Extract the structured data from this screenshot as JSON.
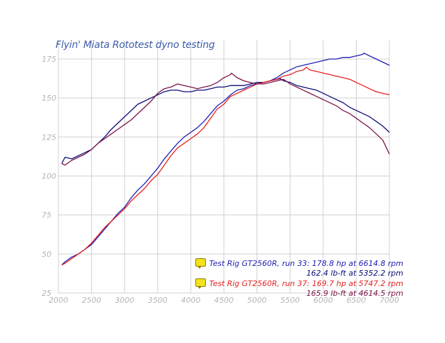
{
  "title": "Flyin' Miata Rototest dyno testing",
  "chart_data": {
    "type": "line",
    "title": "Flyin' Miata Rototest dyno testing",
    "xlabel": "",
    "ylabel": "",
    "xlim": [
      2000,
      7000
    ],
    "ylim": [
      25,
      187
    ],
    "x_ticks": [
      "2000",
      "2500",
      "3000",
      "3500",
      "4000",
      "4500",
      "5000",
      "5500",
      "6000",
      "6500",
      "7000"
    ],
    "y_ticks": [
      "25",
      "50",
      "75",
      "100",
      "125",
      "150",
      "175"
    ],
    "grid": true,
    "series": [
      {
        "name": "Test Rig GT2560R, run 33 hp",
        "color": "#1c1cb4",
        "x": [
          2050,
          2100,
          2200,
          2300,
          2400,
          2500,
          2600,
          2700,
          2800,
          2900,
          3000,
          3100,
          3200,
          3300,
          3400,
          3500,
          3600,
          3700,
          3800,
          3900,
          4000,
          4100,
          4200,
          4300,
          4400,
          4500,
          4600,
          4700,
          4800,
          4900,
          5000,
          5100,
          5200,
          5300,
          5400,
          5500,
          5600,
          5700,
          5800,
          5900,
          6000,
          6100,
          6200,
          6300,
          6400,
          6500,
          6600,
          6615,
          6700,
          6800,
          6900,
          7000
        ],
        "y": [
          43,
          45,
          48,
          50,
          53,
          56,
          61,
          66,
          71,
          76,
          80,
          86,
          91,
          95,
          100,
          105,
          111,
          116,
          121,
          125,
          128,
          131,
          135,
          140,
          145,
          148,
          152,
          155,
          156,
          158,
          159,
          160,
          161,
          163,
          166,
          168,
          170,
          171,
          172,
          173,
          174,
          175,
          175,
          176,
          176,
          177,
          178,
          178.8,
          177,
          175,
          173,
          171
        ]
      },
      {
        "name": "Test Rig GT2560R, run 33 lb-ft",
        "color": "#0a0a78",
        "x": [
          2050,
          2100,
          2200,
          2300,
          2400,
          2500,
          2600,
          2700,
          2800,
          2900,
          3000,
          3100,
          3200,
          3300,
          3400,
          3500,
          3600,
          3700,
          3800,
          3900,
          4000,
          4100,
          4200,
          4300,
          4400,
          4500,
          4600,
          4700,
          4800,
          4900,
          5000,
          5100,
          5200,
          5300,
          5352,
          5400,
          5500,
          5600,
          5700,
          5800,
          5900,
          6000,
          6100,
          6200,
          6300,
          6400,
          6500,
          6600,
          6700,
          6800,
          6900,
          7000
        ],
        "y": [
          108,
          112,
          111,
          113,
          115,
          117,
          121,
          125,
          130,
          134,
          138,
          142,
          146,
          148,
          150,
          152,
          154,
          155,
          155,
          154,
          154,
          155,
          155,
          156,
          157,
          157,
          158,
          158,
          158,
          159,
          160,
          160,
          161,
          162,
          162.4,
          161,
          160,
          158,
          157,
          156,
          155,
          153,
          151,
          149,
          147,
          144,
          142,
          140,
          138,
          135,
          132,
          128
        ]
      },
      {
        "name": "Test Rig GT2560R, run 37 hp",
        "color": "#e41e1e",
        "x": [
          2050,
          2100,
          2200,
          2300,
          2400,
          2500,
          2600,
          2700,
          2800,
          2900,
          3000,
          3100,
          3200,
          3300,
          3400,
          3500,
          3600,
          3700,
          3800,
          3900,
          4000,
          4100,
          4200,
          4300,
          4400,
          4500,
          4600,
          4700,
          4800,
          4900,
          5000,
          5100,
          5200,
          5300,
          5400,
          5500,
          5600,
          5700,
          5747,
          5800,
          5900,
          6000,
          6100,
          6200,
          6300,
          6400,
          6500,
          6600,
          6700,
          6800,
          6900,
          7000
        ],
        "y": [
          43,
          44,
          47,
          50,
          53,
          57,
          62,
          67,
          71,
          75,
          79,
          84,
          88,
          92,
          97,
          101,
          107,
          113,
          118,
          121,
          124,
          127,
          131,
          137,
          143,
          146,
          151,
          153,
          155,
          157,
          159,
          160,
          161,
          162,
          164,
          165,
          167,
          168,
          169.7,
          168,
          167,
          166,
          165,
          164,
          163,
          162,
          160,
          158,
          156,
          154,
          153,
          152
        ]
      },
      {
        "name": "Test Rig GT2560R, run 37 lb-ft",
        "color": "#7a1048",
        "x": [
          2050,
          2100,
          2200,
          2300,
          2400,
          2500,
          2600,
          2700,
          2800,
          2900,
          3000,
          3100,
          3200,
          3300,
          3400,
          3500,
          3600,
          3700,
          3800,
          3900,
          4000,
          4100,
          4200,
          4300,
          4400,
          4500,
          4600,
          4615,
          4700,
          4800,
          4900,
          5000,
          5100,
          5200,
          5300,
          5400,
          5500,
          5600,
          5700,
          5800,
          5900,
          6000,
          6100,
          6200,
          6300,
          6400,
          6500,
          6600,
          6700,
          6800,
          6900,
          7000
        ],
        "y": [
          108,
          107,
          110,
          112,
          114,
          117,
          121,
          124,
          127,
          130,
          133,
          136,
          140,
          144,
          148,
          153,
          156,
          157,
          159,
          158,
          157,
          156,
          157,
          158,
          160,
          163,
          165,
          165.9,
          163,
          161,
          160,
          159,
          159,
          160,
          161,
          162,
          159,
          157,
          155,
          153,
          151,
          149,
          147,
          145,
          142,
          140,
          137,
          134,
          131,
          127,
          123,
          114
        ]
      }
    ],
    "annotations": {
      "run33_label": "Test Rig GT2560R, run 33: 178.8 hp at 6614.8 rpm",
      "run33_sub": "162.4 lb-ft at 5352.2 rpm",
      "run37_label": "Test Rig GT2560R, run 37: 169.7 hp at 5747.2 rpm",
      "run37_sub": "165.9 lb-ft at 4614.5 rpm"
    },
    "legend_position": "bottom-right",
    "colors": {
      "run33_text": "#1c1cb4",
      "run33_sub_text": "#0a0a78",
      "run37_text": "#e41e1e",
      "run37_sub_text": "#7a1048",
      "grid": "#d0d0d0",
      "tick_text": "#b4b4b4",
      "title": "#3b5aa8"
    }
  }
}
